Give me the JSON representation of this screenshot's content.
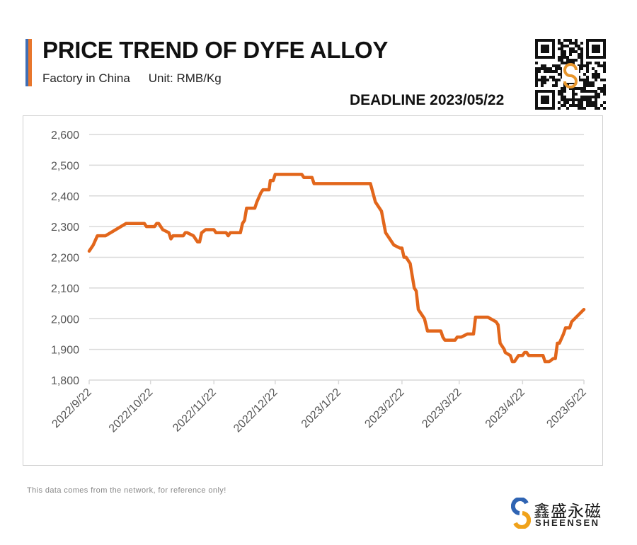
{
  "header": {
    "title": "PRICE TREND OF DYFE ALLOY",
    "factory": "Factory in China",
    "unit": "Unit: RMB/Kg",
    "deadline": "DEADLINE 2023/05/22"
  },
  "footer": {
    "disclaimer": "This data comes from the network, for reference only!",
    "logo_cn": "鑫盛永磁",
    "logo_en": "SHEENSEN"
  },
  "colors": {
    "line": "#e2661b",
    "grid": "#d9d9d9",
    "accent_blue": "#3f6fb5",
    "accent_orange": "#e8762c"
  },
  "chart_data": {
    "type": "line",
    "title": "PRICE TREND OF DYFE ALLOY",
    "xlabel": "",
    "ylabel": "RMB/Kg",
    "ylim": [
      1800,
      2600
    ],
    "yticks": [
      1800,
      1900,
      2000,
      2100,
      2200,
      2300,
      2400,
      2500,
      2600
    ],
    "ytick_labels": [
      "1,800",
      "1,900",
      "2,000",
      "2,100",
      "2,200",
      "2,300",
      "2,400",
      "2,500",
      "2,600"
    ],
    "x_unit": "days since 2022/9/22",
    "xlim": [
      0,
      242
    ],
    "xticks": [
      0,
      30,
      61,
      91,
      122,
      153,
      181,
      212,
      242
    ],
    "xtick_labels": [
      "2022/9/22",
      "2022/10/22",
      "2022/11/22",
      "2022/12/22",
      "2023/1/22",
      "2023/2/22",
      "2023/3/22",
      "2023/4/22",
      "2023/5/22"
    ],
    "grid": true,
    "series": [
      {
        "name": "DyFe Alloy",
        "points": [
          [
            0,
            2220
          ],
          [
            2,
            2240
          ],
          [
            4,
            2270
          ],
          [
            8,
            2270
          ],
          [
            18,
            2310
          ],
          [
            27,
            2310
          ],
          [
            28,
            2300
          ],
          [
            32,
            2300
          ],
          [
            33,
            2310
          ],
          [
            34,
            2310
          ],
          [
            36,
            2290
          ],
          [
            39,
            2280
          ],
          [
            40,
            2260
          ],
          [
            41,
            2270
          ],
          [
            46,
            2270
          ],
          [
            47,
            2280
          ],
          [
            48,
            2280
          ],
          [
            51,
            2270
          ],
          [
            52,
            2260
          ],
          [
            53,
            2250
          ],
          [
            54,
            2250
          ],
          [
            55,
            2280
          ],
          [
            57,
            2290
          ],
          [
            61,
            2290
          ],
          [
            62,
            2280
          ],
          [
            67,
            2280
          ],
          [
            68,
            2270
          ],
          [
            69,
            2280
          ],
          [
            74,
            2280
          ],
          [
            75,
            2310
          ],
          [
            76,
            2320
          ],
          [
            77,
            2360
          ],
          [
            81,
            2360
          ],
          [
            82,
            2380
          ],
          [
            84,
            2410
          ],
          [
            85,
            2420
          ],
          [
            88,
            2420
          ],
          [
            88.6,
            2450
          ],
          [
            90,
            2450
          ],
          [
            91,
            2470
          ],
          [
            104,
            2470
          ],
          [
            105,
            2460
          ],
          [
            109,
            2460
          ],
          [
            110,
            2440
          ],
          [
            137.6,
            2440
          ],
          [
            140,
            2380
          ],
          [
            143,
            2350
          ],
          [
            145,
            2280
          ],
          [
            149,
            2240
          ],
          [
            152,
            2230
          ],
          [
            153,
            2230
          ],
          [
            154,
            2200
          ],
          [
            155,
            2200
          ],
          [
            157,
            2180
          ],
          [
            159,
            2100
          ],
          [
            160,
            2090
          ],
          [
            161,
            2030
          ],
          [
            164,
            2000
          ],
          [
            165.5,
            1960
          ],
          [
            172,
            1960
          ],
          [
            173,
            1940
          ],
          [
            174,
            1930
          ],
          [
            179,
            1930
          ],
          [
            180,
            1940
          ],
          [
            182,
            1940
          ],
          [
            185,
            1950
          ],
          [
            188,
            1950
          ],
          [
            189,
            2005
          ],
          [
            195,
            2005
          ],
          [
            199,
            1990
          ],
          [
            200,
            1980
          ],
          [
            201,
            1920
          ],
          [
            203,
            1900
          ],
          [
            203.5,
            1890
          ],
          [
            206,
            1880
          ],
          [
            207,
            1860
          ],
          [
            208,
            1860
          ],
          [
            210,
            1880
          ],
          [
            212,
            1880
          ],
          [
            213,
            1890
          ],
          [
            214,
            1890
          ],
          [
            215,
            1880
          ],
          [
            222,
            1880
          ],
          [
            223,
            1860
          ],
          [
            225,
            1860
          ],
          [
            227,
            1870
          ],
          [
            228,
            1870
          ],
          [
            229,
            1920
          ],
          [
            230,
            1920
          ],
          [
            232,
            1950
          ],
          [
            233,
            1970
          ],
          [
            235,
            1970
          ],
          [
            236,
            1990
          ],
          [
            242,
            2030
          ]
        ]
      }
    ]
  }
}
